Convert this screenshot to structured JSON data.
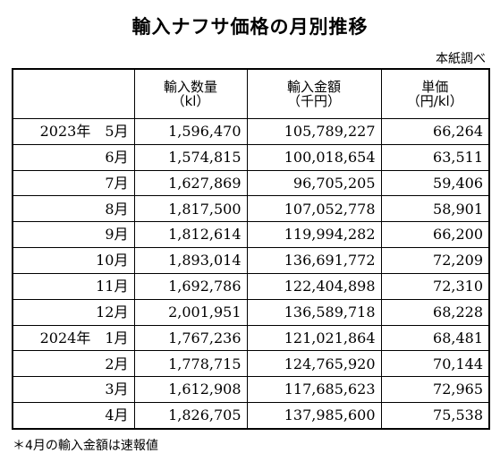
{
  "title": "輸入ナフサ価格の月別推移",
  "source": "本紙調べ",
  "header": {
    "col1": "",
    "col2_line1": "輸入数量",
    "col2_line2": "（kl）",
    "col3_line1": "輸入金額",
    "col3_line2": "（千円）",
    "col4_line1": "単価",
    "col4_line2": "（円/kl）"
  },
  "rows": [
    {
      "month": "2023年　5月",
      "volume": "1,596,470",
      "amount": "105,789,227",
      "price": "66,264"
    },
    {
      "month": "6月",
      "volume": "1,574,815",
      "amount": "100,018,654",
      "price": "63,511"
    },
    {
      "month": "7月",
      "volume": "1,627,869",
      "amount": "96,705,205",
      "price": "59,406"
    },
    {
      "month": "8月",
      "volume": "1,817,500",
      "amount": "107,052,778",
      "price": "58,901"
    },
    {
      "month": "9月",
      "volume": "1,812,614",
      "amount": "119,994,282",
      "price": "66,200"
    },
    {
      "month": "10月",
      "volume": "1,893,014",
      "amount": "136,691,772",
      "price": "72,209"
    },
    {
      "month": "11月",
      "volume": "1,692,786",
      "amount": "122,404,898",
      "price": "72,310"
    },
    {
      "month": "12月",
      "volume": "2,001,951",
      "amount": "136,589,718",
      "price": "68,228"
    },
    {
      "month": "2024年　1月",
      "volume": "1,767,236",
      "amount": "121,021,864",
      "price": "68,481"
    },
    {
      "month": "2月",
      "volume": "1,778,715",
      "amount": "124,765,920",
      "price": "70,144"
    },
    {
      "month": "3月",
      "volume": "1,612,908",
      "amount": "117,685,623",
      "price": "72,965"
    },
    {
      "month": "4月",
      "volume": "1,826,705",
      "amount": "137,985,600",
      "price": "75,538"
    }
  ],
  "note": "＊4月の輸入金額は速報値"
}
